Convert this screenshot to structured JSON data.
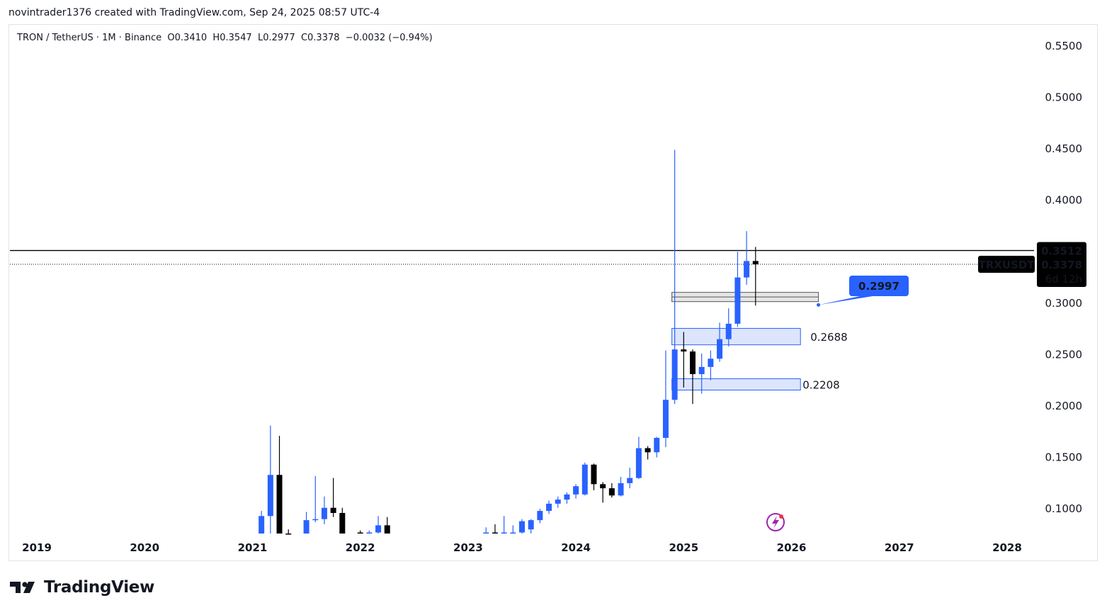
{
  "header": {
    "credit": "novintrader1376 created with TradingView.com, Sep 24, 2025 08:57 UTC-4"
  },
  "legend": {
    "symbol": "TRON / TetherUS · 1M · Binance",
    "open": "O0.3410",
    "high": "H0.3547",
    "low": "L0.2977",
    "close": "C0.3378",
    "change": "−0.0032 (−0.94%)"
  },
  "brand": {
    "name": "TradingView"
  },
  "colors": {
    "up": "#2962ff",
    "down": "#000000",
    "zone_fill": "#d6e0fb",
    "zone_stroke": "#2962ff",
    "callout": "#2962ff"
  },
  "chart_data": {
    "type": "candlestick",
    "symbol": "TRXUSDT",
    "interval": "1M",
    "ylim": [
      0.076,
      0.57
    ],
    "xlim": [
      "2018-10",
      "2028-04"
    ],
    "y_ticks": [
      "0.1000",
      "0.1500",
      "0.2000",
      "0.2500",
      "0.3000",
      "0.4000",
      "0.4500",
      "0.5000",
      "0.5500"
    ],
    "x_ticks": [
      "2019",
      "2020",
      "2021",
      "2022",
      "2023",
      "2024",
      "2025",
      "2026",
      "2027",
      "2028"
    ],
    "price_labels": {
      "horizontal_line": "0.3512",
      "symbol": "TRXUSDT",
      "last_price": "0.3378",
      "countdown": "6d 12h"
    },
    "horizontal_line_value": 0.3512,
    "last_price_value": 0.3378,
    "callout": {
      "label": "0.2997",
      "value": 0.2997
    },
    "zones": [
      {
        "label": "",
        "from": "2024-12",
        "to": "2026-04",
        "low": 0.3015,
        "high": 0.3105,
        "style": "gray"
      },
      {
        "label": "0.2688",
        "from": "2024-12",
        "to": "2026-02",
        "low": 0.2595,
        "high": 0.2755,
        "style": "blue"
      },
      {
        "label": "0.2208",
        "from": "2024-12",
        "to": "2026-02",
        "low": 0.2155,
        "high": 0.2265,
        "style": "blue"
      }
    ],
    "candles": [
      {
        "t": "2021-02",
        "o": 0.0755,
        "h": 0.098,
        "l": 0.075,
        "c": 0.093
      },
      {
        "t": "2021-03",
        "o": 0.093,
        "h": 0.181,
        "l": 0.075,
        "c": 0.133
      },
      {
        "t": "2021-04",
        "o": 0.133,
        "h": 0.171,
        "l": 0.074,
        "c": 0.076
      },
      {
        "t": "2021-05",
        "o": 0.076,
        "h": 0.08,
        "l": 0.072,
        "c": 0.0755
      },
      {
        "t": "2021-07",
        "o": 0.076,
        "h": 0.097,
        "l": 0.074,
        "c": 0.089
      },
      {
        "t": "2021-08",
        "o": 0.089,
        "h": 0.132,
        "l": 0.087,
        "c": 0.09
      },
      {
        "t": "2021-09",
        "o": 0.09,
        "h": 0.112,
        "l": 0.085,
        "c": 0.101
      },
      {
        "t": "2021-10",
        "o": 0.101,
        "h": 0.13,
        "l": 0.092,
        "c": 0.096
      },
      {
        "t": "2021-11",
        "o": 0.096,
        "h": 0.101,
        "l": 0.075,
        "c": 0.076
      },
      {
        "t": "2022-01",
        "o": 0.077,
        "h": 0.079,
        "l": 0.074,
        "c": 0.076
      },
      {
        "t": "2022-02",
        "o": 0.076,
        "h": 0.079,
        "l": 0.074,
        "c": 0.077
      },
      {
        "t": "2022-03",
        "o": 0.077,
        "h": 0.093,
        "l": 0.074,
        "c": 0.084
      },
      {
        "t": "2022-04",
        "o": 0.084,
        "h": 0.092,
        "l": 0.074,
        "c": 0.076
      },
      {
        "t": "2023-03",
        "o": 0.076,
        "h": 0.082,
        "l": 0.074,
        "c": 0.077
      },
      {
        "t": "2023-04",
        "o": 0.077,
        "h": 0.085,
        "l": 0.074,
        "c": 0.0765
      },
      {
        "t": "2023-05",
        "o": 0.076,
        "h": 0.093,
        "l": 0.074,
        "c": 0.077
      },
      {
        "t": "2023-06",
        "o": 0.077,
        "h": 0.084,
        "l": 0.074,
        "c": 0.077
      },
      {
        "t": "2023-07",
        "o": 0.077,
        "h": 0.09,
        "l": 0.076,
        "c": 0.088
      },
      {
        "t": "2023-08",
        "o": 0.08,
        "h": 0.09,
        "l": 0.076,
        "c": 0.089
      },
      {
        "t": "2023-09",
        "o": 0.089,
        "h": 0.1,
        "l": 0.086,
        "c": 0.098
      },
      {
        "t": "2023-10",
        "o": 0.098,
        "h": 0.108,
        "l": 0.095,
        "c": 0.105
      },
      {
        "t": "2023-11",
        "o": 0.105,
        "h": 0.112,
        "l": 0.101,
        "c": 0.109
      },
      {
        "t": "2023-12",
        "o": 0.109,
        "h": 0.116,
        "l": 0.105,
        "c": 0.114
      },
      {
        "t": "2024-01",
        "o": 0.114,
        "h": 0.124,
        "l": 0.11,
        "c": 0.122
      },
      {
        "t": "2024-02",
        "o": 0.114,
        "h": 0.145,
        "l": 0.113,
        "c": 0.143
      },
      {
        "t": "2024-03",
        "o": 0.143,
        "h": 0.144,
        "l": 0.118,
        "c": 0.124
      },
      {
        "t": "2024-04",
        "o": 0.124,
        "h": 0.126,
        "l": 0.106,
        "c": 0.12
      },
      {
        "t": "2024-05",
        "o": 0.12,
        "h": 0.125,
        "l": 0.111,
        "c": 0.113
      },
      {
        "t": "2024-06",
        "o": 0.113,
        "h": 0.131,
        "l": 0.112,
        "c": 0.125
      },
      {
        "t": "2024-07",
        "o": 0.125,
        "h": 0.14,
        "l": 0.12,
        "c": 0.13
      },
      {
        "t": "2024-08",
        "o": 0.13,
        "h": 0.17,
        "l": 0.129,
        "c": 0.159
      },
      {
        "t": "2024-09",
        "o": 0.159,
        "h": 0.161,
        "l": 0.148,
        "c": 0.155
      },
      {
        "t": "2024-10",
        "o": 0.155,
        "h": 0.17,
        "l": 0.15,
        "c": 0.169
      },
      {
        "t": "2024-11",
        "o": 0.169,
        "h": 0.254,
        "l": 0.16,
        "c": 0.206
      },
      {
        "t": "2024-12",
        "o": 0.206,
        "h": 0.449,
        "l": 0.202,
        "c": 0.255
      },
      {
        "t": "2025-01",
        "o": 0.255,
        "h": 0.272,
        "l": 0.218,
        "c": 0.253
      },
      {
        "t": "2025-02",
        "o": 0.253,
        "h": 0.255,
        "l": 0.202,
        "c": 0.231
      },
      {
        "t": "2025-03",
        "o": 0.231,
        "h": 0.251,
        "l": 0.212,
        "c": 0.238
      },
      {
        "t": "2025-04",
        "o": 0.238,
        "h": 0.254,
        "l": 0.225,
        "c": 0.246
      },
      {
        "t": "2025-05",
        "o": 0.246,
        "h": 0.281,
        "l": 0.243,
        "c": 0.265
      },
      {
        "t": "2025-06",
        "o": 0.265,
        "h": 0.295,
        "l": 0.258,
        "c": 0.28
      },
      {
        "t": "2025-07",
        "o": 0.28,
        "h": 0.35,
        "l": 0.277,
        "c": 0.325
      },
      {
        "t": "2025-08",
        "o": 0.325,
        "h": 0.37,
        "l": 0.318,
        "c": 0.341
      },
      {
        "t": "2025-09",
        "o": 0.341,
        "h": 0.3547,
        "l": 0.2977,
        "c": 0.3378
      }
    ]
  }
}
